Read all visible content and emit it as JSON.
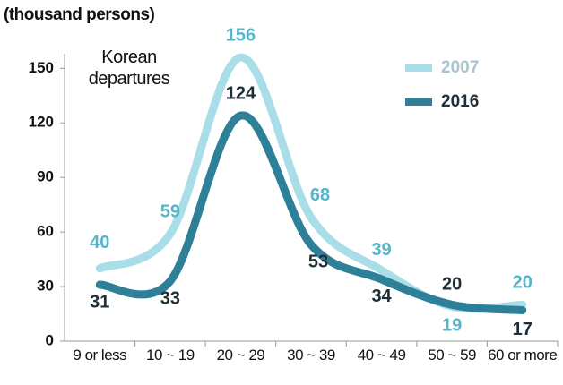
{
  "chart_data": {
    "type": "line",
    "unit_label": "(thousand persons)",
    "annotation": "Korean departures",
    "categories": [
      "9 or less",
      "10 ~ 19",
      "20 ~ 29",
      "30 ~ 39",
      "40 ~ 49",
      "50 ~ 59",
      "60 or more"
    ],
    "series": [
      {
        "name": "2007",
        "color": "#a9dde7",
        "label_color": "#55b5cb",
        "values": [
          40,
          59,
          156,
          68,
          39,
          19,
          20
        ]
      },
      {
        "name": "2016",
        "color": "#2e8099",
        "label_color": "#1e2f38",
        "values": [
          31,
          33,
          124,
          53,
          34,
          20,
          17
        ]
      }
    ],
    "ylim": [
      0,
      160
    ],
    "yticks": [
      0,
      30,
      60,
      90,
      120,
      150
    ],
    "legend": "upper right"
  }
}
